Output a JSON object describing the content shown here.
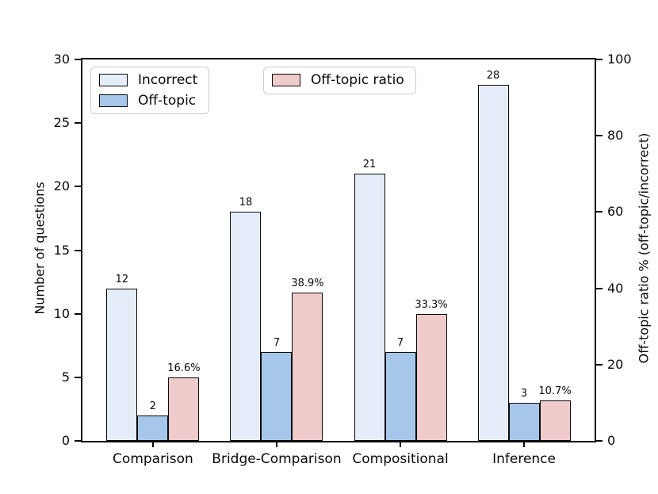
{
  "chart_data": {
    "type": "bar",
    "categories": [
      "Comparison",
      "Bridge-Comparison",
      "Compositional",
      "Inference"
    ],
    "series": [
      {
        "name": "Incorrect",
        "axis": "left",
        "color": "#E5EDF9",
        "values": [
          12,
          18,
          21,
          28
        ],
        "labels": [
          "12",
          "18",
          "21",
          "28"
        ]
      },
      {
        "name": "Off-topic",
        "axis": "left",
        "color": "#A6C7EA",
        "values": [
          2,
          7,
          7,
          3
        ],
        "labels": [
          "2",
          "7",
          "7",
          "3"
        ]
      },
      {
        "name": "Off-topic ratio",
        "axis": "right",
        "color": "#EFCBCB",
        "values": [
          16.6,
          38.9,
          33.3,
          10.7
        ],
        "labels": [
          "16.6%",
          "38.9%",
          "33.3%",
          "10.7%"
        ]
      }
    ],
    "left_axis": {
      "label": "Number of questions",
      "ticks": [
        0,
        5,
        10,
        15,
        20,
        25,
        30
      ],
      "max": 30
    },
    "right_axis": {
      "label": "Off-topic ratio % (off-topic/incorrect)",
      "ticks": [
        0,
        20,
        40,
        60,
        80,
        100
      ],
      "max": 100
    },
    "legend": {
      "boxes": [
        {
          "entries": [
            {
              "label": "Incorrect",
              "color": "#E5EDF9"
            },
            {
              "label": "Off-topic",
              "color": "#A6C7EA"
            }
          ]
        },
        {
          "entries": [
            {
              "label": "Off-topic ratio",
              "color": "#EFCBCB"
            }
          ]
        }
      ]
    },
    "edge_color": "#0a0a0a",
    "grid": false,
    "legend_position": "upper-left-inside"
  }
}
